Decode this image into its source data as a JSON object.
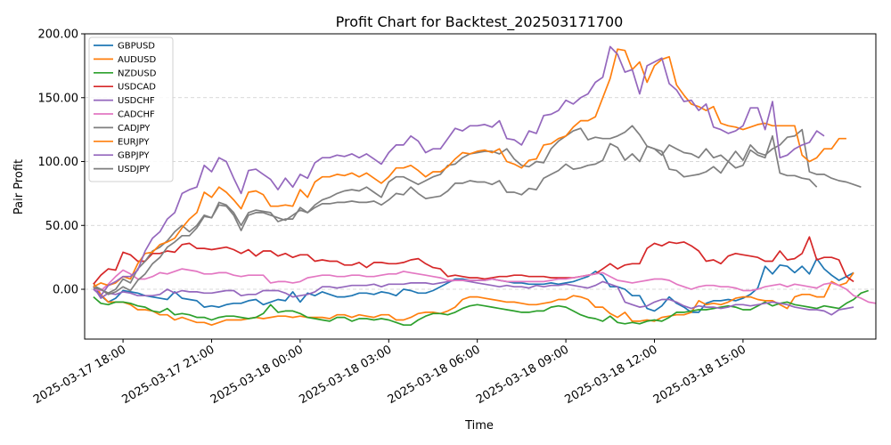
{
  "chart_data": {
    "type": "line",
    "title": "Profit Chart for Backtest_202503171700",
    "xlabel": "Time",
    "ylabel": "Pair Profit",
    "ylim": [
      -39,
      200
    ],
    "y_ticks": [
      0,
      50,
      100,
      150,
      200
    ],
    "y_tick_labels": [
      "0.00",
      "50.00",
      "100.00",
      "150.00",
      "200.00"
    ],
    "x_range_hours": [
      -1.3,
      25.5
    ],
    "x_start_label": "2025-03-17 18:00 = hour 0",
    "x_ticks_hours": [
      0,
      3,
      6,
      9,
      12,
      15,
      18,
      21
    ],
    "x_tick_labels": [
      "2025-03-17 18:00",
      "2025-03-17 21:00",
      "2025-03-18 00:00",
      "2025-03-18 03:00",
      "2025-03-18 06:00",
      "2025-03-18 09:00",
      "2025-03-18 12:00",
      "2025-03-18 15:00"
    ],
    "grid": "horizontal dashed",
    "legend_position": "top-left",
    "x_start": -1.0,
    "x_step": 0.25,
    "series": [
      {
        "name": "GBPUSD",
        "color": "#1f77b4",
        "values": [
          2,
          -5,
          -10,
          -7,
          -1,
          -2,
          -3,
          -5,
          -6,
          -7,
          -8,
          -2,
          -7,
          -8,
          -9,
          -14,
          -13,
          -14,
          -12,
          -11,
          -11,
          -9,
          -8,
          -12,
          -10,
          -8,
          -9,
          -2,
          -10,
          -3,
          -5,
          -2,
          -4,
          -6,
          -6,
          -5,
          -3,
          -3,
          -4,
          -2,
          -3,
          -5,
          0,
          -1,
          -3,
          -3,
          -1,
          2,
          5,
          8,
          8,
          7,
          7,
          7,
          8,
          7,
          6,
          5,
          5,
          4,
          4,
          4,
          5,
          4,
          5,
          6,
          8,
          10,
          14,
          11,
          2,
          2,
          0,
          -5,
          -5,
          -15,
          -17,
          -13,
          -6,
          -11,
          -14,
          -18,
          -18,
          -11,
          -9,
          -9,
          -8,
          -9,
          -7,
          -4,
          1,
          18,
          12,
          19,
          18,
          13,
          18,
          12,
          24,
          16,
          11,
          7,
          10,
          13
        ]
      },
      {
        "name": "AUDUSD",
        "color": "#ff7f0e",
        "values": [
          5,
          -4,
          -10,
          -10,
          -10,
          -12,
          -16,
          -16,
          -17,
          -20,
          -20,
          -24,
          -22,
          -24,
          -26,
          -26,
          -28,
          -26,
          -24,
          -24,
          -24,
          -23,
          -22,
          -23,
          -22,
          -21,
          -21,
          -22,
          -21,
          -22,
          -22,
          -22,
          -23,
          -20,
          -20,
          -22,
          -20,
          -21,
          -22,
          -20,
          -20,
          -24,
          -24,
          -22,
          -19,
          -18,
          -18,
          -19,
          -17,
          -14,
          -8,
          -6,
          -6,
          -7,
          -8,
          -9,
          -10,
          -10,
          -11,
          -12,
          -12,
          -11,
          -10,
          -8,
          -8,
          -5,
          -6,
          -8,
          -14,
          -14,
          -19,
          -22,
          -18,
          -25,
          -25,
          -24,
          -25,
          -22,
          -21,
          -20,
          -20,
          -18,
          -9,
          -12,
          -11,
          -12,
          -10,
          -7,
          -6,
          -6,
          -8,
          -9,
          -9,
          -12,
          -15,
          -6,
          -4,
          -4,
          -6,
          -6,
          6,
          3,
          5,
          13
        ]
      },
      {
        "name": "NZDUSD",
        "color": "#2ca02c",
        "values": [
          -6,
          -11,
          -12,
          -10,
          -10,
          -11,
          -13,
          -14,
          -17,
          -18,
          -15,
          -20,
          -19,
          -20,
          -22,
          -22,
          -24,
          -22,
          -21,
          -21,
          -22,
          -23,
          -22,
          -19,
          -12,
          -18,
          -17,
          -17,
          -19,
          -22,
          -23,
          -24,
          -25,
          -22,
          -22,
          -25,
          -23,
          -23,
          -24,
          -23,
          -24,
          -26,
          -28,
          -28,
          -24,
          -21,
          -19,
          -19,
          -20,
          -18,
          -15,
          -13,
          -12,
          -13,
          -14,
          -15,
          -16,
          -17,
          -18,
          -18,
          -17,
          -17,
          -14,
          -13,
          -14,
          -17,
          -20,
          -22,
          -23,
          -25,
          -21,
          -26,
          -27,
          -26,
          -27,
          -25,
          -24,
          -25,
          -22,
          -18,
          -18,
          -17,
          -16,
          -16,
          -15,
          -14,
          -13,
          -14,
          -16,
          -16,
          -13,
          -10,
          -13,
          -11,
          -10,
          -12,
          -13,
          -14,
          -15,
          -13,
          -14,
          -15,
          -11,
          -8,
          -3,
          -1
        ]
      },
      {
        "name": "USDCAD",
        "color": "#d62728",
        "values": [
          4,
          11,
          16,
          15,
          29,
          27,
          22,
          22,
          28,
          28,
          30,
          29,
          35,
          36,
          32,
          32,
          31,
          32,
          33,
          31,
          28,
          31,
          26,
          30,
          30,
          26,
          28,
          25,
          27,
          27,
          22,
          23,
          22,
          22,
          19,
          19,
          21,
          17,
          21,
          21,
          20,
          20,
          21,
          23,
          24,
          20,
          17,
          16,
          10,
          11,
          10,
          9,
          9,
          8,
          9,
          10,
          10,
          11,
          11,
          10,
          10,
          10,
          9,
          9,
          9,
          9,
          10,
          11,
          12,
          16,
          20,
          16,
          19,
          20,
          20,
          32,
          36,
          34,
          37,
          36,
          37,
          34,
          30,
          22,
          23,
          20,
          26,
          28,
          27,
          26,
          25,
          22,
          22,
          30,
          23,
          24,
          28,
          41,
          23,
          25,
          25,
          23,
          10,
          6
        ]
      },
      {
        "name": "USDCHF",
        "color": "#9467bd",
        "values": [
          2,
          -7,
          -3,
          -4,
          -2,
          -3,
          -5,
          -5,
          -5,
          -4,
          0,
          -3,
          -1,
          -2,
          -2,
          -3,
          -3,
          -2,
          -1,
          -1,
          -5,
          -4,
          -4,
          -1,
          -1,
          -1,
          -3,
          -6,
          -5,
          -4,
          -2,
          2,
          2,
          1,
          2,
          3,
          3,
          3,
          4,
          2,
          4,
          4,
          4,
          5,
          5,
          5,
          4,
          5,
          6,
          7,
          7,
          6,
          5,
          4,
          3,
          2,
          3,
          2,
          2,
          1,
          3,
          2,
          3,
          3,
          4,
          3,
          2,
          1,
          3,
          6,
          4,
          2,
          -10,
          -12,
          -14,
          -13,
          -10,
          -8,
          -8,
          -10,
          -13,
          -15,
          -13,
          -14,
          -14,
          -15,
          -14,
          -12,
          -12,
          -13,
          -12,
          -11,
          -10,
          -11,
          -12,
          -14,
          -15,
          -16,
          -16,
          -17,
          -20,
          -16,
          -15,
          -14
        ]
      },
      {
        "name": "CADCHF",
        "color": "#e377c2",
        "values": [
          0,
          -1,
          4,
          10,
          15,
          12,
          8,
          8,
          10,
          13,
          12,
          14,
          16,
          15,
          14,
          12,
          12,
          13,
          13,
          11,
          10,
          11,
          11,
          11,
          5,
          6,
          6,
          5,
          6,
          9,
          10,
          11,
          11,
          10,
          10,
          11,
          11,
          10,
          10,
          11,
          12,
          12,
          14,
          13,
          12,
          11,
          10,
          9,
          7,
          7,
          7,
          7,
          7,
          7,
          8,
          7,
          6,
          6,
          6,
          6,
          6,
          6,
          7,
          8,
          8,
          9,
          10,
          11,
          12,
          13,
          10,
          7,
          6,
          5,
          6,
          7,
          8,
          8,
          7,
          4,
          2,
          0,
          2,
          3,
          3,
          2,
          2,
          1,
          -1,
          -1,
          0,
          2,
          3,
          4,
          2,
          4,
          3,
          2,
          1,
          4,
          5,
          3,
          0,
          -5,
          -7,
          -10,
          -11
        ]
      },
      {
        "name": "CADJPY",
        "color": "#7f7f7f",
        "values": [
          3,
          0,
          -3,
          0,
          8,
          5,
          16,
          22,
          30,
          33,
          38,
          45,
          50,
          45,
          50,
          58,
          56,
          68,
          66,
          60,
          50,
          60,
          62,
          61,
          60,
          53,
          55,
          55,
          64,
          60,
          66,
          70,
          72,
          75,
          77,
          78,
          77,
          80,
          76,
          72,
          84,
          88,
          88,
          85,
          82,
          85,
          88,
          90,
          97,
          98,
          103,
          106,
          107,
          108,
          108,
          106,
          110,
          102,
          97,
          96,
          100,
          99,
          110,
          116,
          120,
          124,
          126,
          117,
          119,
          118,
          118,
          120,
          123,
          128,
          121,
          112,
          110,
          105,
          113,
          110,
          107,
          106,
          103,
          110,
          103,
          105,
          100,
          108,
          101,
          113,
          107,
          105,
          110,
          113,
          119,
          120,
          125,
          92,
          90,
          90,
          87,
          85,
          84,
          82,
          80
        ]
      },
      {
        "name": "EURJPY",
        "color": "#ff7f0e",
        "values": [
          2,
          5,
          3,
          5,
          10,
          8,
          20,
          28,
          29,
          35,
          37,
          40,
          48,
          55,
          60,
          76,
          72,
          80,
          76,
          70,
          63,
          76,
          77,
          74,
          65,
          65,
          66,
          65,
          78,
          72,
          84,
          88,
          88,
          90,
          89,
          91,
          88,
          91,
          87,
          83,
          88,
          95,
          95,
          97,
          93,
          88,
          92,
          92,
          96,
          102,
          107,
          106,
          108,
          109,
          107,
          110,
          100,
          98,
          95,
          101,
          102,
          113,
          114,
          118,
          120,
          127,
          132,
          132,
          135,
          150,
          165,
          188,
          187,
          172,
          178,
          162,
          175,
          180,
          182,
          160,
          152,
          145,
          143,
          140,
          143,
          130,
          128,
          127,
          125,
          127,
          129,
          130,
          128,
          128,
          128,
          128,
          105,
          100,
          103,
          110,
          110,
          118,
          118
        ]
      },
      {
        "name": "GBPJPY",
        "color": "#9467bd",
        "values": [
          0,
          -5,
          3,
          6,
          10,
          10,
          15,
          30,
          40,
          45,
          55,
          60,
          75,
          78,
          80,
          97,
          92,
          103,
          100,
          87,
          75,
          93,
          94,
          90,
          86,
          78,
          87,
          80,
          90,
          87,
          99,
          103,
          103,
          105,
          104,
          106,
          103,
          106,
          102,
          98,
          107,
          113,
          113,
          120,
          116,
          107,
          110,
          110,
          118,
          126,
          124,
          128,
          128,
          129,
          127,
          132,
          118,
          117,
          113,
          124,
          122,
          136,
          137,
          140,
          148,
          145,
          150,
          153,
          162,
          166,
          190,
          184,
          170,
          172,
          153,
          175,
          178,
          181,
          161,
          156,
          147,
          148,
          140,
          145,
          127,
          125,
          122,
          124,
          128,
          142,
          142,
          125,
          147,
          103,
          105,
          110,
          113,
          115,
          124,
          120
        ]
      },
      {
        "name": "USDJPY",
        "color": "#7f7f7f",
        "values": [
          1,
          0,
          -4,
          -2,
          2,
          -1,
          7,
          12,
          20,
          25,
          33,
          37,
          42,
          42,
          48,
          57,
          56,
          66,
          65,
          58,
          46,
          58,
          60,
          60,
          58,
          56,
          54,
          58,
          62,
          60,
          64,
          67,
          67,
          68,
          68,
          69,
          68,
          68,
          69,
          66,
          70,
          75,
          74,
          80,
          75,
          71,
          72,
          73,
          77,
          83,
          83,
          85,
          84,
          84,
          82,
          85,
          76,
          76,
          74,
          79,
          78,
          87,
          90,
          93,
          98,
          94,
          95,
          97,
          98,
          101,
          114,
          111,
          101,
          106,
          100,
          112,
          110,
          108,
          94,
          93,
          88,
          89,
          90,
          92,
          96,
          91,
          100,
          95,
          97,
          109,
          105,
          103,
          120,
          91,
          89,
          89,
          87,
          86,
          80
        ]
      }
    ]
  }
}
